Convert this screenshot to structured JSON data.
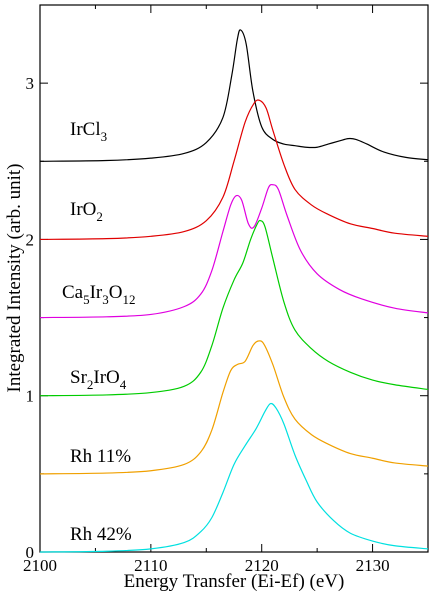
{
  "chart_data": {
    "type": "line",
    "title": "",
    "xlabel": "Energy Transfer (Ei-Ef) (eV)",
    "ylabel": "Integrated Intensity (arb. unit)",
    "xlim": [
      2100,
      2135
    ],
    "ylim": [
      0,
      3.5
    ],
    "x_ticks": [
      2100,
      2110,
      2120,
      2130
    ],
    "y_ticks": [
      0,
      1,
      2,
      3
    ],
    "grid": false,
    "legend": "inline labels at left",
    "series": [
      {
        "name": "IrCl3",
        "label_parts": [
          {
            "t": "IrCl",
            "sub": false
          },
          {
            "t": "3",
            "sub": true
          }
        ],
        "color": "#000000",
        "points": [
          [
            2100,
            2.5
          ],
          [
            2106,
            2.505
          ],
          [
            2110,
            2.52
          ],
          [
            2113,
            2.55
          ],
          [
            2115,
            2.62
          ],
          [
            2116.5,
            2.78
          ],
          [
            2117.3,
            3.05
          ],
          [
            2117.8,
            3.28
          ],
          [
            2118.1,
            3.34
          ],
          [
            2118.6,
            3.25
          ],
          [
            2119.2,
            2.95
          ],
          [
            2120,
            2.72
          ],
          [
            2121,
            2.64
          ],
          [
            2122,
            2.61
          ],
          [
            2123,
            2.6
          ],
          [
            2124,
            2.59
          ],
          [
            2125,
            2.59
          ],
          [
            2126,
            2.61
          ],
          [
            2127,
            2.63
          ],
          [
            2127.8,
            2.645
          ],
          [
            2128.5,
            2.64
          ],
          [
            2129.5,
            2.61
          ],
          [
            2131,
            2.56
          ],
          [
            2133,
            2.525
          ],
          [
            2135,
            2.51
          ]
        ]
      },
      {
        "name": "IrO2",
        "label_parts": [
          {
            "t": "IrO",
            "sub": false
          },
          {
            "t": "2",
            "sub": true
          }
        ],
        "color": "#e00000",
        "points": [
          [
            2100,
            2.0
          ],
          [
            2106,
            2.005
          ],
          [
            2110,
            2.02
          ],
          [
            2113,
            2.05
          ],
          [
            2115,
            2.12
          ],
          [
            2116.5,
            2.27
          ],
          [
            2117.5,
            2.5
          ],
          [
            2118.5,
            2.75
          ],
          [
            2119.3,
            2.87
          ],
          [
            2119.8,
            2.89
          ],
          [
            2120.4,
            2.84
          ],
          [
            2121,
            2.7
          ],
          [
            2122,
            2.48
          ],
          [
            2123,
            2.32
          ],
          [
            2124.5,
            2.22
          ],
          [
            2126,
            2.16
          ],
          [
            2128,
            2.1
          ],
          [
            2130,
            2.07
          ],
          [
            2132,
            2.04
          ],
          [
            2135,
            2.02
          ]
        ]
      },
      {
        "name": "Ca5Ir3O12",
        "label_parts": [
          {
            "t": "Ca",
            "sub": false
          },
          {
            "t": "5",
            "sub": true
          },
          {
            "t": "Ir",
            "sub": false
          },
          {
            "t": "3",
            "sub": true
          },
          {
            "t": "O",
            "sub": false
          },
          {
            "t": "12",
            "sub": true
          }
        ],
        "color": "#e000e0",
        "points": [
          [
            2100,
            1.5
          ],
          [
            2106,
            1.505
          ],
          [
            2110,
            1.52
          ],
          [
            2113,
            1.57
          ],
          [
            2114.5,
            1.65
          ],
          [
            2115.5,
            1.8
          ],
          [
            2116.5,
            2.05
          ],
          [
            2117.2,
            2.22
          ],
          [
            2117.7,
            2.28
          ],
          [
            2118.2,
            2.25
          ],
          [
            2118.8,
            2.1
          ],
          [
            2119.3,
            2.08
          ],
          [
            2120,
            2.2
          ],
          [
            2120.6,
            2.33
          ],
          [
            2121,
            2.35
          ],
          [
            2121.5,
            2.32
          ],
          [
            2122.3,
            2.15
          ],
          [
            2123.5,
            1.93
          ],
          [
            2125,
            1.78
          ],
          [
            2127,
            1.68
          ],
          [
            2129,
            1.62
          ],
          [
            2132,
            1.56
          ],
          [
            2135,
            1.53
          ]
        ]
      },
      {
        "name": "Sr2IrO4",
        "label_parts": [
          {
            "t": "Sr",
            "sub": false
          },
          {
            "t": "2",
            "sub": true
          },
          {
            "t": "IrO",
            "sub": false
          },
          {
            "t": "4",
            "sub": true
          }
        ],
        "color": "#00cc00",
        "points": [
          [
            2100,
            1.0
          ],
          [
            2106,
            1.005
          ],
          [
            2110,
            1.02
          ],
          [
            2113,
            1.06
          ],
          [
            2114.5,
            1.15
          ],
          [
            2115.5,
            1.32
          ],
          [
            2116.5,
            1.56
          ],
          [
            2117.5,
            1.74
          ],
          [
            2118.3,
            1.85
          ],
          [
            2119,
            2.0
          ],
          [
            2119.6,
            2.1
          ],
          [
            2119.9,
            2.12
          ],
          [
            2120.3,
            2.08
          ],
          [
            2121,
            1.88
          ],
          [
            2122,
            1.6
          ],
          [
            2123,
            1.42
          ],
          [
            2124.5,
            1.3
          ],
          [
            2126,
            1.22
          ],
          [
            2128,
            1.15
          ],
          [
            2130,
            1.1
          ],
          [
            2132,
            1.07
          ],
          [
            2135,
            1.04
          ]
        ]
      },
      {
        "name": "Rh 11%",
        "label_parts": [
          {
            "t": "Rh 11%",
            "sub": false
          }
        ],
        "color": "#f0a000",
        "points": [
          [
            2100,
            0.5
          ],
          [
            2106,
            0.505
          ],
          [
            2110,
            0.52
          ],
          [
            2113,
            0.56
          ],
          [
            2114.5,
            0.64
          ],
          [
            2115.5,
            0.78
          ],
          [
            2116.5,
            1.02
          ],
          [
            2117.2,
            1.16
          ],
          [
            2117.8,
            1.2
          ],
          [
            2118.5,
            1.22
          ],
          [
            2119.2,
            1.32
          ],
          [
            2119.7,
            1.35
          ],
          [
            2120.2,
            1.33
          ],
          [
            2121,
            1.2
          ],
          [
            2122,
            0.99
          ],
          [
            2123,
            0.85
          ],
          [
            2124.5,
            0.75
          ],
          [
            2126,
            0.69
          ],
          [
            2128,
            0.63
          ],
          [
            2130,
            0.6
          ],
          [
            2132,
            0.57
          ],
          [
            2135,
            0.55
          ]
        ]
      },
      {
        "name": "Rh 42%",
        "label_parts": [
          {
            "t": "Rh 42%",
            "sub": false
          }
        ],
        "color": "#00e0e0",
        "points": [
          [
            2100,
            0.0
          ],
          [
            2106,
            0.005
          ],
          [
            2110,
            0.02
          ],
          [
            2113,
            0.06
          ],
          [
            2114.5,
            0.13
          ],
          [
            2115.5,
            0.22
          ],
          [
            2116.5,
            0.38
          ],
          [
            2117.5,
            0.56
          ],
          [
            2118.5,
            0.68
          ],
          [
            2119.5,
            0.79
          ],
          [
            2120.3,
            0.9
          ],
          [
            2120.8,
            0.95
          ],
          [
            2121.3,
            0.92
          ],
          [
            2122,
            0.82
          ],
          [
            2123,
            0.62
          ],
          [
            2124,
            0.46
          ],
          [
            2125,
            0.32
          ],
          [
            2126.5,
            0.2
          ],
          [
            2128,
            0.12
          ],
          [
            2130,
            0.07
          ],
          [
            2132,
            0.04
          ],
          [
            2135,
            0.02
          ]
        ]
      }
    ]
  }
}
